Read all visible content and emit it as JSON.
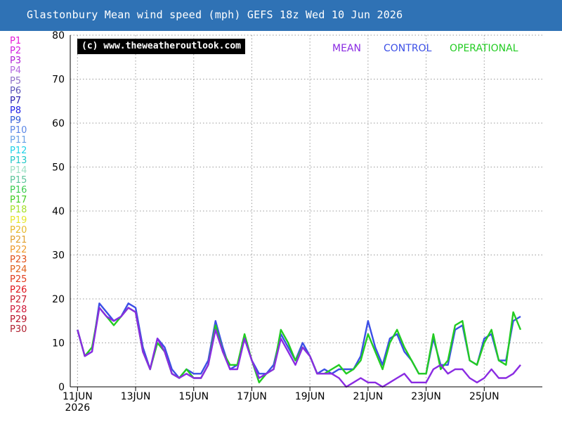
{
  "header": {
    "title": "Glastonbury Mean wind speed (mph) GEFS 18z Wed 10 Jun 2026"
  },
  "credit": "(c) www.theweatheroutlook.com",
  "key": [
    {
      "label": "MEAN",
      "color": "#8a2be2"
    },
    {
      "label": "CONTROL",
      "color": "#3b4fe6"
    },
    {
      "label": "OPERATIONAL",
      "color": "#22cc22"
    }
  ],
  "members": [
    {
      "label": "P1",
      "color": "#e81ad8"
    },
    {
      "label": "P2",
      "color": "#d21ee0"
    },
    {
      "label": "P3",
      "color": "#b11fd6"
    },
    {
      "label": "P4",
      "color": "#b46ae0"
    },
    {
      "label": "P5",
      "color": "#8f6fc8"
    },
    {
      "label": "P6",
      "color": "#5a52b8"
    },
    {
      "label": "P7",
      "color": "#2a1fb0"
    },
    {
      "label": "P8",
      "color": "#1f20e8"
    },
    {
      "label": "P9",
      "color": "#2f5ad8"
    },
    {
      "label": "P10",
      "color": "#5a86e6"
    },
    {
      "label": "P11",
      "color": "#6aa2e6"
    },
    {
      "label": "P12",
      "color": "#1fd2e8"
    },
    {
      "label": "P13",
      "color": "#22c8c8"
    },
    {
      "label": "P14",
      "color": "#9ee0c4"
    },
    {
      "label": "P15",
      "color": "#5cc49a"
    },
    {
      "label": "P16",
      "color": "#3ccc50"
    },
    {
      "label": "P17",
      "color": "#43cc22"
    },
    {
      "label": "P18",
      "color": "#a6e02a"
    },
    {
      "label": "P19",
      "color": "#e6e62a"
    },
    {
      "label": "P20",
      "color": "#e6b82a"
    },
    {
      "label": "P21",
      "color": "#e0a030"
    },
    {
      "label": "P22",
      "color": "#ee9a2a"
    },
    {
      "label": "P23",
      "color": "#e0501a"
    },
    {
      "label": "P24",
      "color": "#e0601a"
    },
    {
      "label": "P25",
      "color": "#e03a1a"
    },
    {
      "label": "P26",
      "color": "#e0141a"
    },
    {
      "label": "P27",
      "color": "#c81a2a"
    },
    {
      "label": "P28",
      "color": "#d01a3a"
    },
    {
      "label": "P29",
      "color": "#b8142a"
    },
    {
      "label": "P30",
      "color": "#b02030"
    }
  ],
  "chart_data": {
    "type": "line",
    "title": "Glastonbury Mean wind speed (mph) GEFS 18z Wed 10 Jun 2026",
    "ylabel": "",
    "xlabel": "",
    "ylim": [
      0,
      80
    ],
    "yticks": [
      0,
      10,
      20,
      30,
      40,
      50,
      60,
      70,
      80
    ],
    "xlim_hours": [
      -6,
      384
    ],
    "xticks": [
      {
        "label": "11JUN",
        "sublabel": "2026",
        "hour": 0
      },
      {
        "label": "13JUN",
        "hour": 48
      },
      {
        "label": "15JUN",
        "hour": 96
      },
      {
        "label": "17JUN",
        "hour": 144
      },
      {
        "label": "19JUN",
        "hour": 192
      },
      {
        "label": "21JUN",
        "hour": 240
      },
      {
        "label": "23JUN",
        "hour": 288
      },
      {
        "label": "25JUN",
        "hour": 336
      }
    ],
    "grid": true,
    "time_step_hours": 6,
    "series": [
      {
        "name": "OPERATIONAL",
        "values": [
          13,
          7,
          9,
          18,
          16,
          14,
          16,
          18,
          17,
          8,
          4,
          10,
          8,
          3,
          2,
          4,
          2,
          2,
          5,
          14,
          8,
          5,
          5,
          12,
          6,
          1,
          3,
          4,
          13,
          10,
          6,
          9,
          7,
          3,
          3,
          4,
          5,
          3,
          4,
          6,
          12,
          8,
          4,
          10,
          13,
          9,
          6,
          3,
          3,
          12,
          4,
          6,
          14,
          15,
          6,
          5,
          10,
          13,
          6,
          5,
          17,
          13
        ]
      },
      {
        "name": "CONTROL",
        "values": [
          13,
          7,
          8,
          19,
          17,
          15,
          16,
          19,
          18,
          9,
          4,
          11,
          9,
          4,
          2,
          4,
          3,
          3,
          6,
          15,
          9,
          4,
          5,
          11,
          6,
          3,
          3,
          5,
          12,
          9,
          6,
          10,
          7,
          3,
          4,
          3,
          4,
          4,
          4,
          7,
          15,
          9,
          5,
          11,
          12,
          8,
          6,
          3,
          3,
          11,
          5,
          5,
          13,
          14,
          6,
          5,
          11,
          12,
          6,
          6,
          15,
          16
        ]
      },
      {
        "name": "MEAN",
        "values": [
          13,
          7,
          8,
          18,
          16,
          15,
          16,
          18,
          17,
          8,
          4,
          11,
          8,
          3,
          2,
          3,
          2,
          2,
          5,
          13,
          8,
          4,
          4,
          11,
          6,
          2,
          3,
          4,
          11,
          8,
          5,
          9,
          7,
          3,
          3,
          3,
          2,
          0,
          1,
          2,
          1,
          1,
          0,
          1,
          2,
          3,
          1,
          1,
          1,
          4,
          5,
          3,
          4,
          4,
          2,
          1,
          2,
          4,
          2,
          2,
          3,
          5
        ]
      }
    ]
  }
}
